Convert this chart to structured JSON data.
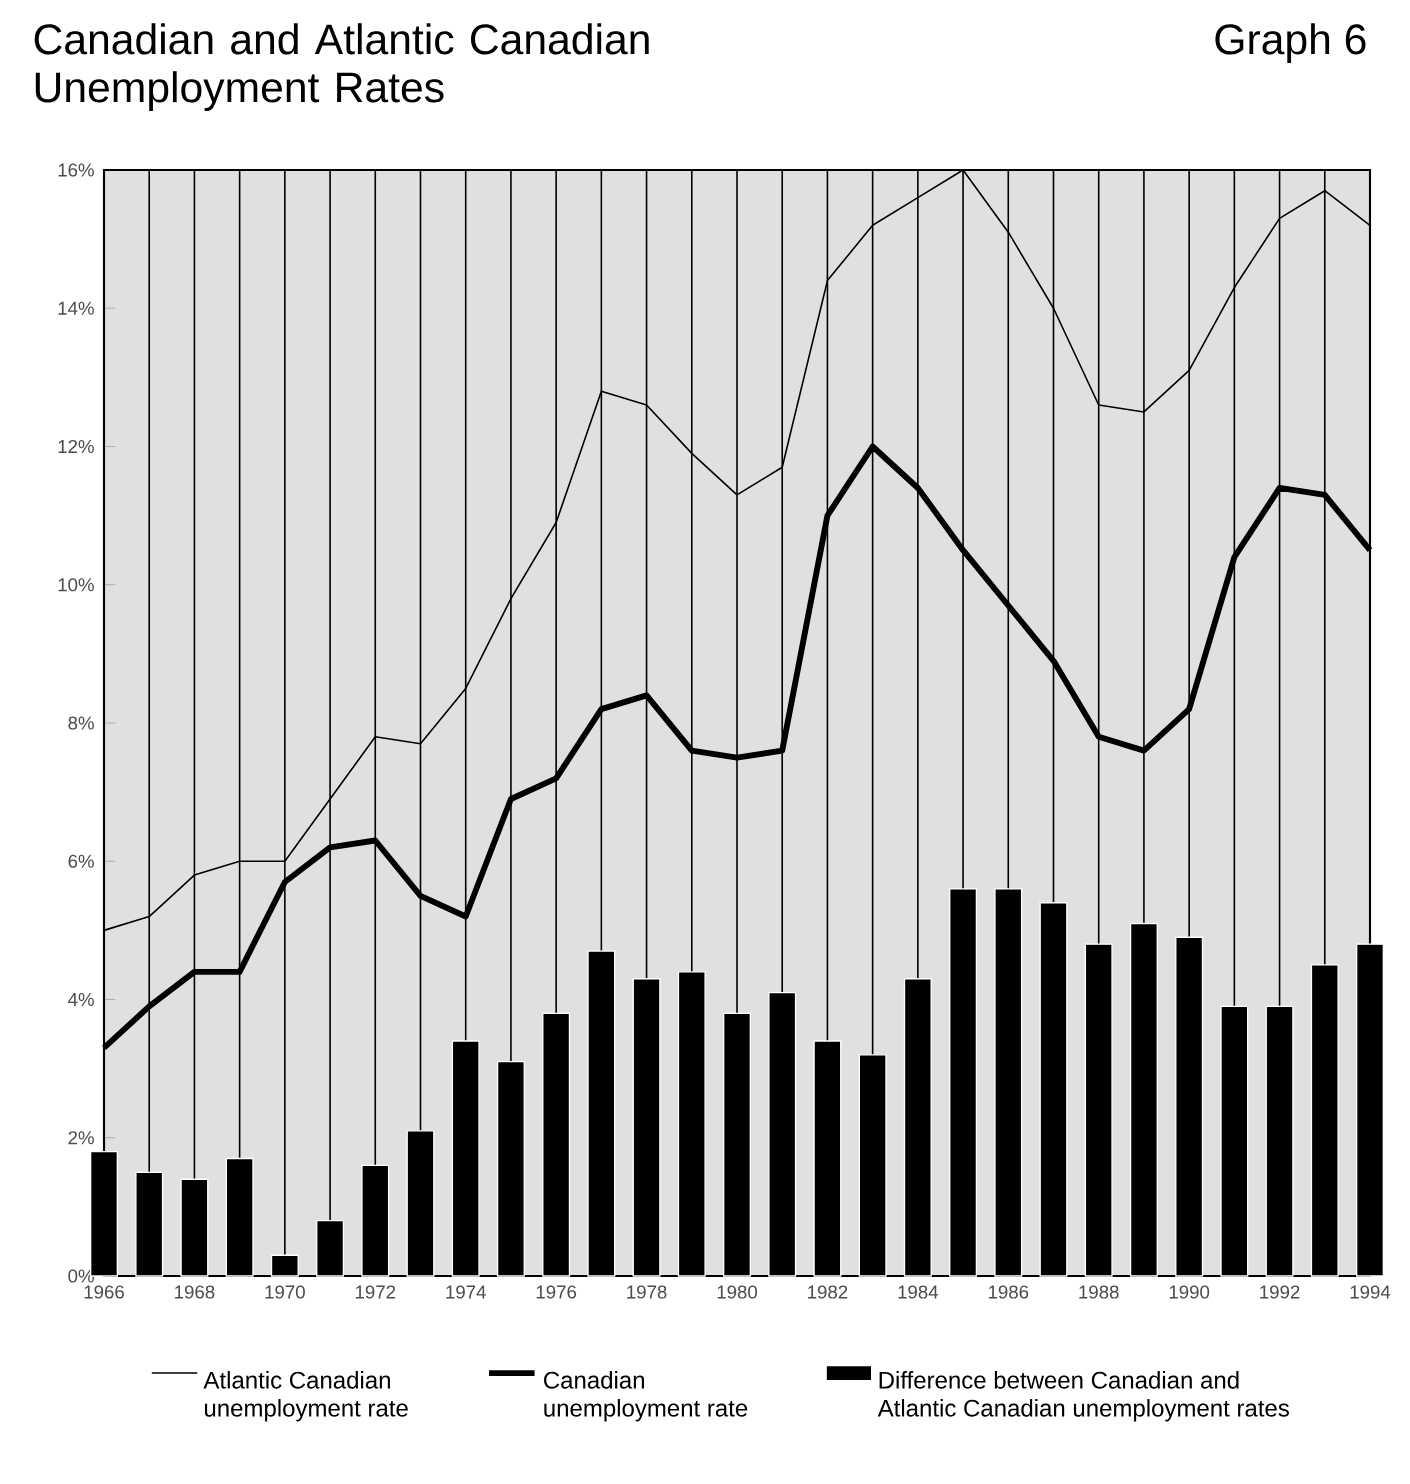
{
  "chart_data": {
    "type": "bar",
    "title": "Canadian and Atlantic Canadian Unemployment Rates",
    "annotations": [
      "Graph 6"
    ],
    "x": [
      1966,
      1967,
      1968,
      1969,
      1970,
      1971,
      1972,
      1973,
      1974,
      1975,
      1976,
      1977,
      1978,
      1979,
      1980,
      1981,
      1982,
      1983,
      1984,
      1985,
      1986,
      1987,
      1988,
      1989,
      1990,
      1991,
      1992,
      1993,
      1994
    ],
    "series": [
      {
        "name": "Atlantic Canadian unemployment rate",
        "type": "line",
        "color": "#000000",
        "values": [
          5.0,
          5.2,
          5.8,
          6.0,
          6.0,
          6.9,
          7.8,
          7.7,
          8.5,
          9.8,
          10.9,
          12.8,
          12.6,
          11.9,
          11.3,
          11.7,
          14.4,
          15.2,
          15.6,
          16.0,
          15.1,
          14.0,
          12.6,
          12.5,
          13.1,
          14.3,
          15.3,
          15.7,
          15.2
        ]
      },
      {
        "name": "Canadian unemployment rate",
        "type": "line",
        "color": "#000000",
        "values": [
          3.3,
          3.9,
          4.4,
          4.4,
          5.7,
          6.2,
          6.3,
          5.5,
          5.2,
          6.9,
          7.2,
          8.2,
          8.4,
          7.6,
          7.5,
          7.6,
          11.0,
          12.0,
          11.4,
          10.5,
          9.7,
          8.9,
          7.8,
          7.6,
          8.2,
          10.4,
          11.4,
          11.3,
          10.5
        ]
      },
      {
        "name": "Difference between Canadian and Atlantic Canadian unemployment rates",
        "color": "#000000",
        "values": [
          1.8,
          1.5,
          1.4,
          1.7,
          0.3,
          0.8,
          1.6,
          2.1,
          3.4,
          3.1,
          3.8,
          4.7,
          4.3,
          4.4,
          3.8,
          4.1,
          3.4,
          3.2,
          4.3,
          5.6,
          5.6,
          5.4,
          4.8,
          5.1,
          4.9,
          3.9,
          3.9,
          4.5,
          4.8
        ]
      }
    ],
    "xlim": [
      1966,
      1994
    ],
    "xticks": [
      1966,
      {
        "value": 1967,
        "label": null
      },
      1968,
      {
        "value": 1969,
        "label": null
      },
      1970,
      {
        "value": 1971,
        "label": null
      },
      1972,
      {
        "value": 1973,
        "label": null
      },
      1974,
      {
        "value": 1975,
        "label": null
      },
      1976,
      {
        "value": 1977,
        "label": null
      },
      1978,
      {
        "value": 1979,
        "label": null
      },
      1980,
      {
        "value": 1981,
        "label": null
      },
      1982,
      {
        "value": 1983,
        "label": null
      },
      1984,
      {
        "value": 1985,
        "label": null
      },
      1986,
      {
        "value": 1987,
        "label": null
      },
      1988,
      {
        "value": 1989,
        "label": null
      },
      1990,
      {
        "value": 1991,
        "label": null
      },
      1992,
      {
        "value": 1993,
        "label": null
      },
      1994
    ],
    "ylim": [
      0,
      16
    ],
    "yticks": [
      {
        "value": 0,
        "label": "0%"
      },
      {
        "value": 2,
        "label": "2%"
      },
      {
        "value": 4,
        "label": "4%"
      },
      {
        "value": 6,
        "label": "6%"
      },
      {
        "value": 8,
        "label": "8%"
      },
      {
        "value": 10,
        "label": "10%"
      },
      {
        "value": 12,
        "label": "12%"
      },
      {
        "value": 14,
        "label": "14%"
      },
      {
        "value": 16,
        "label": "16%"
      }
    ],
    "grid": "x",
    "legend": "bottom"
  }
}
